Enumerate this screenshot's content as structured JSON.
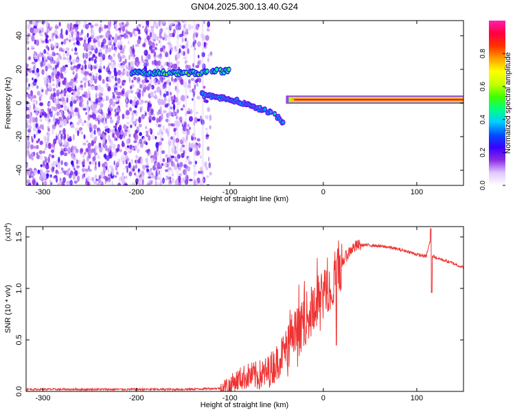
{
  "figure_title": "GN04.2025.300.13.40.G24",
  "chart_data": [
    {
      "type": "heatmap",
      "name": "spectrogram",
      "title": "GN04.2025.300.13.40.G24",
      "xlabel": "Height of straight line (km)",
      "ylabel": "Frequency (Hz)",
      "xlim": [
        -318,
        150
      ],
      "ylim": [
        -49,
        49
      ],
      "x_ticks": [
        -300,
        -200,
        -100,
        0,
        100
      ],
      "y_ticks": [
        -40,
        -20,
        0,
        20,
        40
      ],
      "colorbar": {
        "label": "Normalized spectral amplitude",
        "range": [
          0,
          1
        ],
        "ticks": [
          0.0,
          0.2,
          0.4,
          0.6,
          0.8
        ],
        "tick_labels": [
          "0.0",
          "0.2",
          "0.4",
          "0.6",
          "0.8"
        ],
        "colors": [
          "#ffffff",
          "#e0c8ff",
          "#8a2be2",
          "#3a00ff",
          "#0050ff",
          "#00d0ff",
          "#00ff80",
          "#40ff00",
          "#c8ff00",
          "#ffff00",
          "#ffa000",
          "#ff3000",
          "#ff0040",
          "#ff20b0"
        ]
      },
      "features": [
        {
          "label": "noise region",
          "x_range": [
            -318,
            -120
          ],
          "freq_range": [
            -49,
            49
          ],
          "amplitude": 0.12
        },
        {
          "label": "upper branch",
          "x": [
            -205,
            -175,
            -150,
            -130,
            -115,
            -100
          ],
          "freq": [
            18,
            18,
            18,
            18,
            19,
            19
          ],
          "amplitude": 0.45
        },
        {
          "label": "descending branch",
          "x": [
            -130,
            -110,
            -90,
            -75,
            -60,
            -50,
            -42
          ],
          "freq": [
            5,
            3,
            1,
            -2,
            -5,
            -8,
            -12
          ],
          "amplitude": 0.35
        },
        {
          "label": "steady carrier",
          "x_range": [
            -40,
            150
          ],
          "freq": 2,
          "amplitude": 0.95
        }
      ]
    },
    {
      "type": "line",
      "name": "snr",
      "xlabel": "Height of straight line (km)",
      "ylabel": "SNR (10 * v/v)",
      "y_multiplier": "(x10",
      "y_multiplier_exp": "4",
      "y_multiplier_close": ")",
      "xlim": [
        -318,
        150
      ],
      "ylim": [
        0,
        1.6
      ],
      "x_ticks": [
        -300,
        -200,
        -100,
        0,
        100
      ],
      "y_ticks": [
        0.0,
        0.5,
        1.0,
        1.5
      ],
      "y_tick_labels": [
        "0.0",
        "0.5",
        "1.0",
        "1.5"
      ],
      "color": "#ee3333",
      "series": [
        {
          "name": "SNR",
          "x": [
            -318,
            -300,
            -250,
            -200,
            -150,
            -130,
            -110,
            -100,
            -90,
            -80,
            -70,
            -60,
            -50,
            -45,
            -40,
            -35,
            -30,
            -25,
            -20,
            -15,
            -10,
            -5,
            0,
            5,
            10,
            15,
            20,
            25,
            30,
            35,
            40,
            50,
            60,
            70,
            80,
            90,
            100,
            110,
            114,
            116,
            118,
            120,
            130,
            140,
            150
          ],
          "y": [
            0.02,
            0.02,
            0.02,
            0.02,
            0.02,
            0.025,
            0.03,
            0.06,
            0.12,
            0.15,
            0.15,
            0.18,
            0.28,
            0.35,
            0.42,
            0.45,
            0.55,
            0.6,
            0.7,
            0.75,
            0.8,
            0.9,
            0.95,
            1.0,
            1.05,
            1.15,
            1.25,
            1.32,
            1.38,
            1.41,
            1.42,
            1.42,
            1.41,
            1.4,
            1.38,
            1.36,
            1.33,
            1.31,
            1.45,
            1.3,
            1.32,
            1.3,
            1.27,
            1.24,
            1.2
          ]
        }
      ],
      "annotations": [
        {
          "label": "spike",
          "x": 115,
          "y": 1.58
        },
        {
          "label": "dip",
          "x": 116,
          "y": 0.96
        },
        {
          "label": "dip",
          "x": 14,
          "y": 0.45
        }
      ]
    }
  ]
}
